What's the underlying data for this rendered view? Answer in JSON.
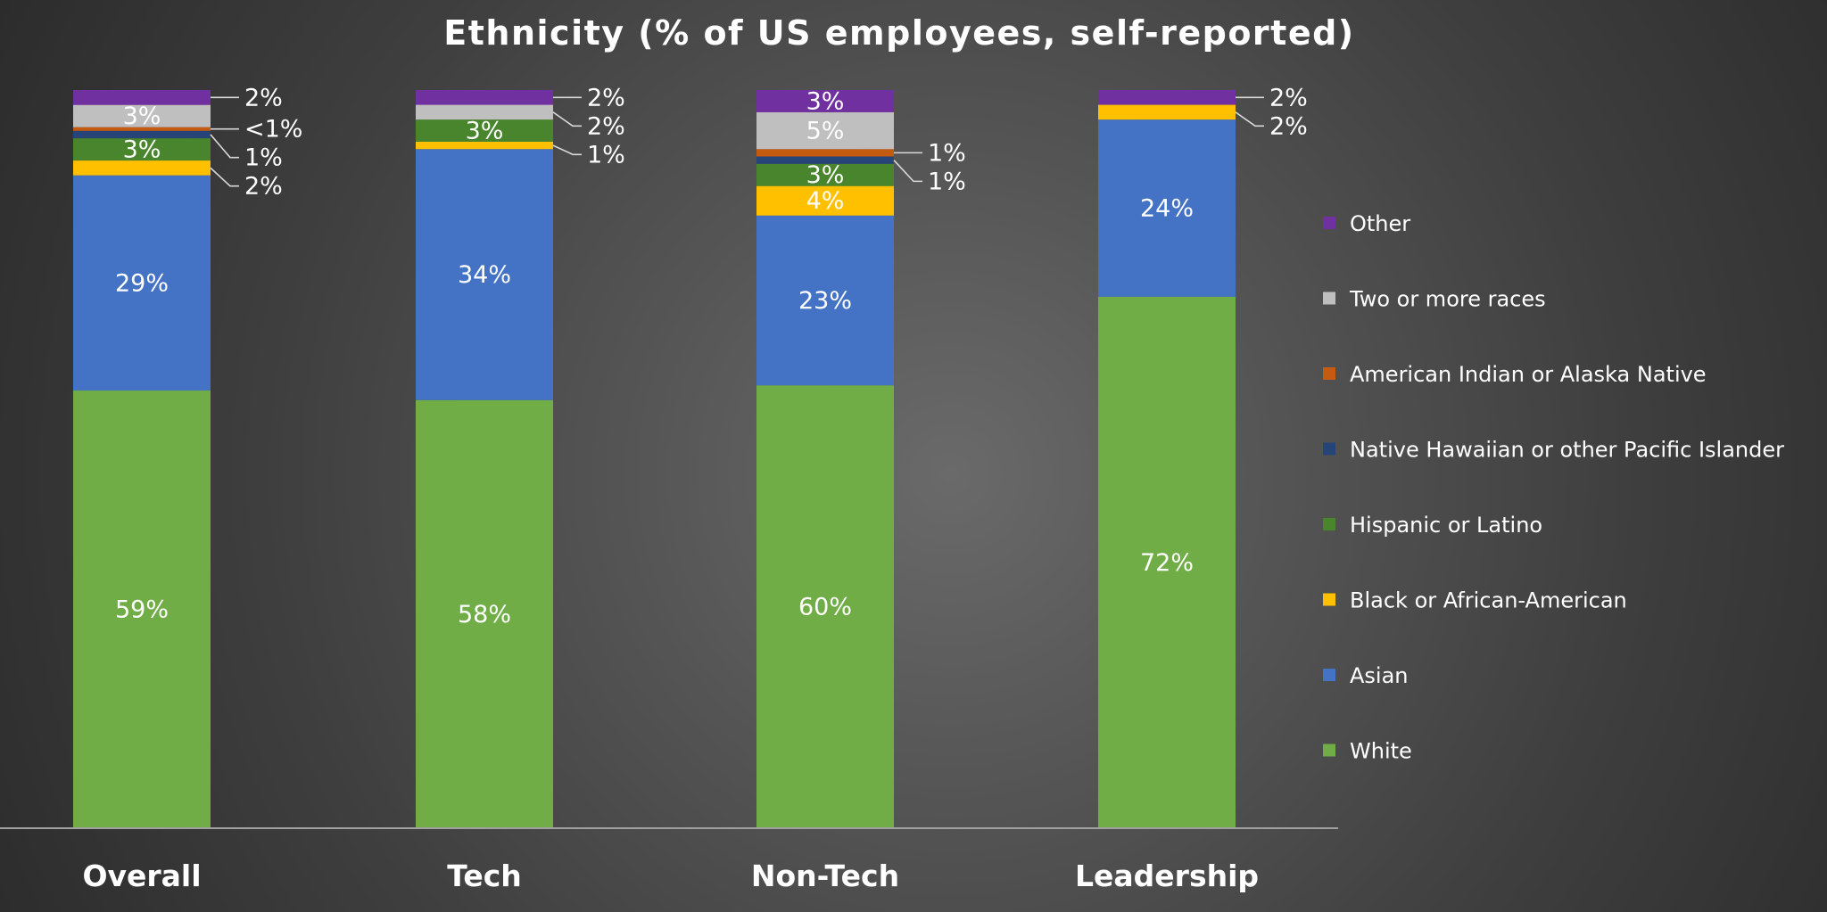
{
  "chart_data": {
    "type": "bar",
    "stacked": true,
    "title": "Ethnicity (% of US employees, self-reported)",
    "xlabel": "",
    "ylabel": "",
    "ylim": [
      0,
      100
    ],
    "grid": false,
    "legend_position": "right",
    "categories": [
      "Overall",
      "Tech",
      "Non-Tech",
      "Leadership"
    ],
    "series": [
      {
        "name": "White",
        "color": "#70ad47",
        "values": [
          59,
          58,
          60,
          72
        ],
        "labels": [
          "59%",
          "58%",
          "60%",
          "72%"
        ]
      },
      {
        "name": "Asian",
        "color": "#4472c4",
        "values": [
          29,
          34,
          23,
          24
        ],
        "labels": [
          "29%",
          "34%",
          "23%",
          "24%"
        ]
      },
      {
        "name": "Black or African-American",
        "color": "#ffc000",
        "values": [
          2,
          1,
          4,
          2
        ],
        "labels": [
          "2%",
          "1%",
          "4%",
          "2%"
        ]
      },
      {
        "name": "Hispanic or Latino",
        "color": "#48852c",
        "values": [
          3,
          3,
          3,
          0
        ],
        "labels": [
          "3%",
          "3%",
          "3%",
          ""
        ]
      },
      {
        "name": "Native Hawaiian or other Pacific Islander",
        "color": "#264478",
        "values": [
          1,
          0,
          1,
          0
        ],
        "labels": [
          "1%",
          "",
          "1%",
          ""
        ]
      },
      {
        "name": "American Indian or Alaska Native",
        "color": "#c55a11",
        "values": [
          0.5,
          0,
          1,
          0
        ],
        "labels": [
          "<1%",
          "",
          "1%",
          ""
        ]
      },
      {
        "name": "Two or more races",
        "color": "#bfbfbf",
        "values": [
          3,
          2,
          5,
          0
        ],
        "labels": [
          "3%",
          "2%",
          "5%",
          ""
        ]
      },
      {
        "name": "Other",
        "color": "#7030a0",
        "values": [
          2,
          2,
          3,
          2
        ],
        "labels": [
          "2%",
          "2%",
          "3%",
          "2%"
        ]
      }
    ]
  }
}
